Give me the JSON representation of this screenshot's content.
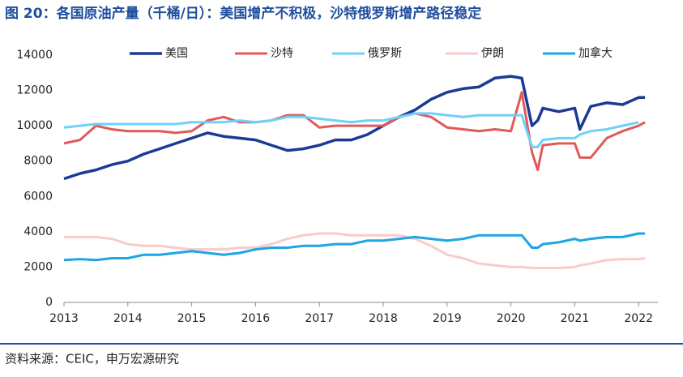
{
  "chart_data": {
    "type": "line",
    "title": "图 20：各国原油产量（千桶/日）：美国增产不积极，沙特俄罗斯增产路径稳定",
    "source": "资料来源：CEIC，申万宏源研究",
    "x": [
      2013,
      2013.25,
      2013.5,
      2013.75,
      2014,
      2014.25,
      2014.5,
      2014.75,
      2015,
      2015.25,
      2015.5,
      2015.75,
      2016,
      2016.25,
      2016.5,
      2016.75,
      2017,
      2017.25,
      2017.5,
      2017.75,
      2018,
      2018.25,
      2018.5,
      2018.75,
      2019,
      2019.25,
      2019.5,
      2019.75,
      2020,
      2020.17,
      2020.33,
      2020.42,
      2020.5,
      2020.75,
      2021,
      2021.08,
      2021.25,
      2021.5,
      2021.75,
      2022,
      2022.1
    ],
    "series": [
      {
        "name": "美国",
        "color": "#1a3a94",
        "width": 3.5,
        "values": [
          7000,
          7300,
          7500,
          7800,
          8000,
          8400,
          8700,
          9000,
          9300,
          9600,
          9400,
          9300,
          9200,
          8900,
          8600,
          8700,
          8900,
          9200,
          9200,
          9500,
          10000,
          10500,
          10900,
          11500,
          11900,
          12100,
          12200,
          12700,
          12800,
          12700,
          10000,
          10300,
          11000,
          10800,
          11000,
          9800,
          11100,
          11300,
          11200,
          11600,
          11600
        ]
      },
      {
        "name": "沙特",
        "color": "#e05a5a",
        "width": 3,
        "values": [
          9000,
          9200,
          10000,
          9800,
          9700,
          9700,
          9700,
          9600,
          9700,
          10300,
          10500,
          10200,
          10200,
          10300,
          10600,
          10600,
          9900,
          10000,
          10000,
          10000,
          10000,
          10500,
          10700,
          10500,
          9900,
          9800,
          9700,
          9800,
          9700,
          11900,
          8500,
          7500,
          8900,
          9000,
          9000,
          8200,
          8200,
          9300,
          9700,
          10000,
          10200
        ]
      },
      {
        "name": "俄罗斯",
        "color": "#6fd0fa",
        "width": 3,
        "values": [
          9900,
          10000,
          10100,
          10100,
          10100,
          10100,
          10100,
          10100,
          10200,
          10200,
          10200,
          10300,
          10200,
          10300,
          10500,
          10500,
          10400,
          10300,
          10200,
          10300,
          10300,
          10500,
          10700,
          10700,
          10600,
          10500,
          10600,
          10600,
          10600,
          10600,
          8800,
          8800,
          9200,
          9300,
          9300,
          9500,
          9700,
          9800,
          10000,
          10200,
          null
        ]
      },
      {
        "name": "伊朗",
        "color": "#f6cccc",
        "width": 3,
        "values": [
          3700,
          3700,
          3700,
          3600,
          3300,
          3200,
          3200,
          3100,
          3000,
          3000,
          3000,
          3100,
          3100,
          3300,
          3600,
          3800,
          3900,
          3900,
          3800,
          3800,
          3800,
          3800,
          3600,
          3200,
          2700,
          2500,
          2200,
          2100,
          2000,
          2000,
          1950,
          1950,
          1950,
          1950,
          2000,
          2100,
          2200,
          2400,
          2450,
          2450,
          2500
        ]
      },
      {
        "name": "加拿大",
        "color": "#1ea5e3",
        "width": 3,
        "values": [
          2400,
          2450,
          2400,
          2500,
          2500,
          2700,
          2700,
          2800,
          2900,
          2800,
          2700,
          2800,
          3000,
          3100,
          3100,
          3200,
          3200,
          3300,
          3300,
          3500,
          3500,
          3600,
          3700,
          3600,
          3500,
          3600,
          3800,
          3800,
          3800,
          3800,
          3100,
          3100,
          3300,
          3400,
          3600,
          3500,
          3600,
          3700,
          3700,
          3900,
          3900
        ]
      }
    ],
    "xlim": [
      2013,
      2022.3
    ],
    "xticks": [
      2013,
      2014,
      2015,
      2016,
      2017,
      2018,
      2019,
      2020,
      2021,
      2022
    ],
    "ylim": [
      0,
      14000
    ],
    "yticks": [
      0,
      2000,
      4000,
      6000,
      8000,
      10000,
      12000,
      14000
    ],
    "grid": false
  }
}
